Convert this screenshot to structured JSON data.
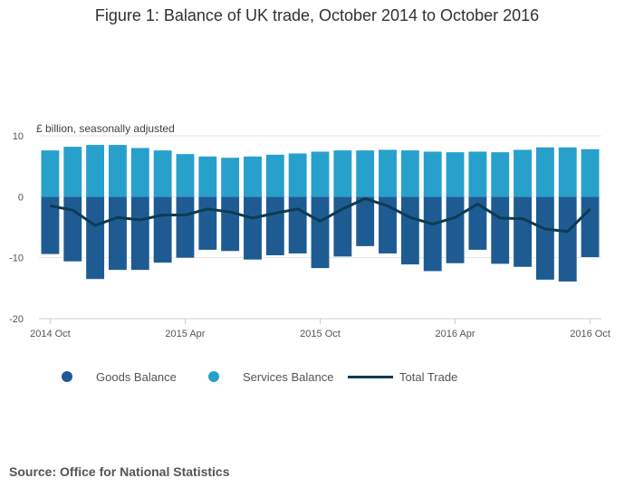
{
  "page": {
    "source": "Source: Office for National Statistics"
  },
  "colors": {
    "goods": "#1f5b93",
    "services": "#27a0cc",
    "total": "#0d3b52",
    "zero_line": "#e6e6e6",
    "axis": "#cccccc"
  },
  "chart_data": {
    "type": "bar",
    "title": "Figure 1: Balance of UK trade, October 2014 to October 2016",
    "ylabel": "£ billion, seasonally adjusted",
    "stacked": true,
    "ylim": [
      -20,
      10
    ],
    "yticks": [
      10,
      0,
      -10,
      -20
    ],
    "categories": [
      "2014 Oct",
      "2014 Nov",
      "2014 Dec",
      "2015 Jan",
      "2015 Feb",
      "2015 Mar",
      "2015 Apr",
      "2015 May",
      "2015 Jun",
      "2015 Jul",
      "2015 Aug",
      "2015 Sep",
      "2015 Oct",
      "2015 Nov",
      "2015 Dec",
      "2016 Jan",
      "2016 Feb",
      "2016 Mar",
      "2016 Apr",
      "2016 May",
      "2016 Jun",
      "2016 Jul",
      "2016 Aug",
      "2016 Sep",
      "2016 Oct"
    ],
    "xtick_labels": [
      {
        "category": "2014 Oct",
        "label": "2014 Oct"
      },
      {
        "category": "2015 Apr",
        "label": "2015 Apr"
      },
      {
        "category": "2015 Oct",
        "label": "2015 Oct"
      },
      {
        "category": "2016 Apr",
        "label": "2016 Apr"
      },
      {
        "category": "2016 Oct",
        "label": "2016 Oct"
      }
    ],
    "series": [
      {
        "name": "Goods Balance",
        "type": "bar",
        "values": [
          -9.4,
          -10.6,
          -13.5,
          -12.0,
          -12.0,
          -10.8,
          -10.0,
          -8.7,
          -8.9,
          -10.3,
          -9.6,
          -9.3,
          -11.7,
          -9.8,
          -8.1,
          -9.3,
          -11.1,
          -12.2,
          -10.9,
          -8.7,
          -11.0,
          -11.5,
          -13.6,
          -13.9,
          -9.9
        ]
      },
      {
        "name": "Services Balance",
        "type": "bar",
        "values": [
          7.6,
          8.2,
          8.5,
          8.5,
          8.0,
          7.6,
          7.0,
          6.6,
          6.4,
          6.6,
          6.9,
          7.1,
          7.4,
          7.6,
          7.6,
          7.7,
          7.6,
          7.4,
          7.3,
          7.4,
          7.3,
          7.7,
          8.1,
          8.1,
          7.8
        ]
      },
      {
        "name": "Total Trade",
        "type": "line",
        "values": [
          -1.5,
          -2.2,
          -4.7,
          -3.4,
          -3.8,
          -3.0,
          -3.0,
          -2.0,
          -2.5,
          -3.5,
          -2.7,
          -2.0,
          -4.0,
          -2.0,
          -0.3,
          -1.5,
          -3.4,
          -4.5,
          -3.4,
          -1.2,
          -3.5,
          -3.6,
          -5.3,
          -5.7,
          -2.0
        ]
      }
    ]
  }
}
